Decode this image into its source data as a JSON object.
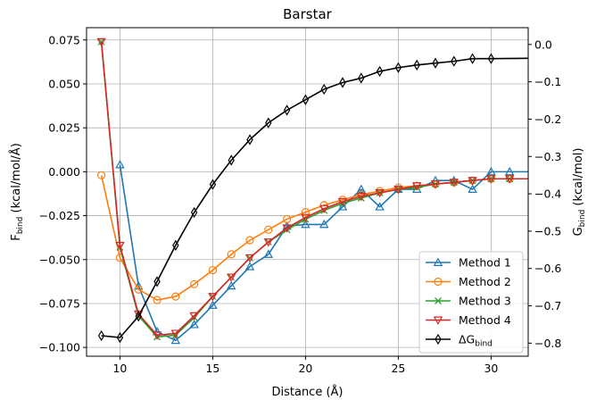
{
  "chart_data": {
    "type": "line",
    "title": "Barstar",
    "xlabel": "Distance (Å)",
    "ylabel_left": "F_bind (kcal/mol/Å)",
    "ylabel_right": "G_bind (kcal/mol)",
    "xlim": [
      8.2,
      32
    ],
    "ylim_left": [
      -0.105,
      0.082
    ],
    "ylim_right": [
      -0.835,
      0.045
    ],
    "x_ticks": [
      10,
      15,
      20,
      25,
      30
    ],
    "y_ticks_left": [
      "0.075",
      "0.050",
      "0.025",
      "0.000",
      "−0.025",
      "−0.050",
      "−0.075",
      "−0.100"
    ],
    "y_ticks_left_values": [
      0.075,
      0.05,
      0.025,
      0.0,
      -0.025,
      -0.05,
      -0.075,
      -0.1
    ],
    "y_ticks_right": [
      "0.0",
      "−0.1",
      "−0.2",
      "−0.3",
      "−0.4",
      "−0.5",
      "−0.6",
      "−0.7",
      "−0.8"
    ],
    "y_ticks_right_values": [
      0.0,
      -0.1,
      -0.2,
      -0.3,
      -0.4,
      -0.5,
      -0.6,
      -0.7,
      -0.8
    ],
    "grid": true,
    "legend_position": "lower-right",
    "series": [
      {
        "name": "Method 1",
        "axis": "left",
        "color": "#1f77b4",
        "marker": "triangle-up",
        "x": [
          10,
          11,
          12,
          13,
          14,
          15,
          16,
          17,
          18,
          19,
          20,
          21,
          22,
          23,
          24,
          25,
          26,
          27,
          28,
          29,
          30,
          31,
          32
        ],
        "values": [
          0.004,
          -0.065,
          -0.091,
          -0.096,
          -0.087,
          -0.076,
          -0.065,
          -0.054,
          -0.047,
          -0.031,
          -0.03,
          -0.03,
          -0.02,
          -0.01,
          -0.02,
          -0.01,
          -0.01,
          -0.005,
          -0.005,
          -0.01,
          0.0,
          0.0,
          0.0
        ]
      },
      {
        "name": "Method 2",
        "axis": "left",
        "color": "#ff7f0e",
        "marker": "circle",
        "x": [
          9,
          10,
          11,
          12,
          13,
          14,
          15,
          16,
          17,
          18,
          19,
          20,
          21,
          22,
          23,
          24,
          25,
          26,
          27,
          28,
          29,
          30,
          31,
          32
        ],
        "values": [
          -0.002,
          -0.049,
          -0.067,
          -0.073,
          -0.071,
          -0.064,
          -0.056,
          -0.047,
          -0.039,
          -0.033,
          -0.027,
          -0.023,
          -0.019,
          -0.016,
          -0.013,
          -0.011,
          -0.009,
          -0.008,
          -0.007,
          -0.006,
          -0.005,
          -0.004,
          -0.004,
          -0.004
        ]
      },
      {
        "name": "Method 3",
        "axis": "left",
        "color": "#2ca02c",
        "marker": "x",
        "x": [
          9,
          10,
          11,
          12,
          13,
          14,
          15,
          16,
          17,
          18,
          19,
          20,
          21,
          22,
          23,
          24,
          25,
          26,
          27,
          28,
          29,
          30,
          31,
          32
        ],
        "values": [
          0.074,
          -0.043,
          -0.082,
          -0.094,
          -0.093,
          -0.083,
          -0.071,
          -0.06,
          -0.049,
          -0.04,
          -0.033,
          -0.027,
          -0.022,
          -0.018,
          -0.015,
          -0.012,
          -0.01,
          -0.009,
          -0.007,
          -0.006,
          -0.005,
          -0.004,
          -0.004,
          -0.004
        ]
      },
      {
        "name": "Method 4",
        "axis": "left",
        "color": "#d62728",
        "marker": "triangle-down",
        "x": [
          9,
          10,
          11,
          12,
          13,
          14,
          15,
          16,
          17,
          18,
          19,
          20,
          21,
          22,
          23,
          24,
          25,
          26,
          27,
          28,
          29,
          30,
          31,
          32
        ],
        "values": [
          0.074,
          -0.042,
          -0.081,
          -0.093,
          -0.092,
          -0.082,
          -0.071,
          -0.06,
          -0.049,
          -0.04,
          -0.032,
          -0.026,
          -0.021,
          -0.017,
          -0.014,
          -0.012,
          -0.01,
          -0.008,
          -0.007,
          -0.006,
          -0.005,
          -0.004,
          -0.004,
          -0.004
        ]
      },
      {
        "name": "ΔG_bind",
        "axis": "right",
        "color": "#000000",
        "marker": "thin-diamond",
        "x": [
          9,
          10,
          11,
          12,
          13,
          14,
          15,
          16,
          17,
          18,
          19,
          20,
          21,
          22,
          23,
          24,
          25,
          26,
          27,
          28,
          29,
          30,
          32
        ],
        "values": [
          -0.78,
          -0.785,
          -0.728,
          -0.635,
          -0.538,
          -0.45,
          -0.375,
          -0.31,
          -0.255,
          -0.21,
          -0.176,
          -0.148,
          -0.12,
          -0.102,
          -0.09,
          -0.072,
          -0.062,
          -0.055,
          -0.05,
          -0.045,
          -0.038,
          -0.038,
          -0.037
        ]
      }
    ]
  }
}
